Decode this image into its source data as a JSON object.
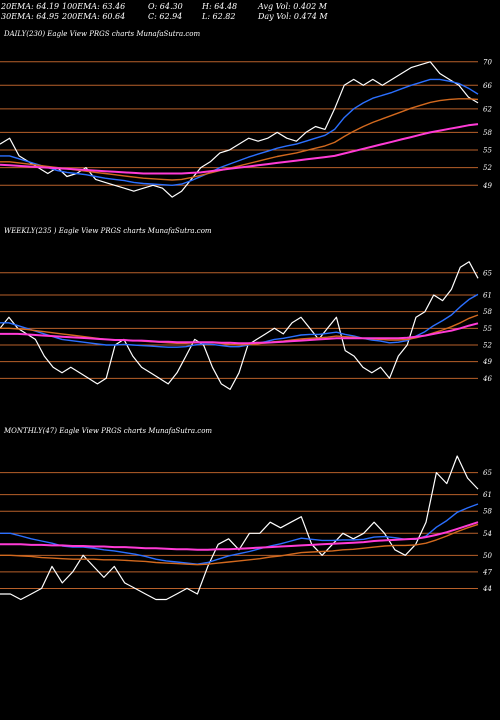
{
  "header": {
    "ema20": "20EMA: 64.19",
    "ema100": "100EMA: 63.46",
    "open": "O: 64.30",
    "high": "H: 64.48",
    "avg_vol": "Avg Vol: 0.402  M",
    "ema30": "30EMA: 64.95",
    "ema200": "200EMA: 60.64",
    "close": "C: 62.94",
    "low": "L: 62.82",
    "day_vol": "Day Vol: 0.474  M"
  },
  "colors": {
    "background": "#000000",
    "price": "#ffffff",
    "ema_short": "#2b6fff",
    "ema_long": "#ff3bd6",
    "ema_mid": "#d2691e",
    "gridline": "#b8602a"
  },
  "chart_data": [
    {
      "type": "line",
      "label": "DAILY(230) Eagle  View  PRGS charts MunafaSutra.com",
      "ylim": [
        46.5,
        72
      ],
      "yticks": [
        70,
        66,
        62,
        58,
        55,
        52,
        49
      ],
      "series": [
        {
          "role": "price",
          "color": "#ffffff",
          "values": [
            56,
            57,
            54,
            53,
            52,
            51,
            52,
            50.5,
            51,
            52,
            50,
            49.5,
            49,
            48.5,
            48,
            48.5,
            49,
            48.5,
            47,
            48,
            50,
            52,
            53,
            54.5,
            55,
            56,
            57,
            56.5,
            57,
            58,
            57,
            56.5,
            58,
            59,
            58.5,
            62,
            66,
            67,
            66,
            67,
            66,
            67,
            68,
            69,
            69.5,
            70,
            68,
            67,
            66,
            64,
            63
          ]
        },
        {
          "role": "ema_short",
          "color": "#2b6fff",
          "values": [
            54,
            54,
            53.5,
            53,
            52.5,
            52,
            51.5,
            51.2,
            51,
            50.8,
            50.5,
            50.2,
            50,
            49.8,
            49.5,
            49.3,
            49.2,
            49.1,
            49,
            49.2,
            49.8,
            50.5,
            51.2,
            52,
            52.6,
            53.2,
            53.8,
            54.3,
            54.8,
            55.3,
            55.7,
            56,
            56.5,
            57,
            57.5,
            58.5,
            60.5,
            62,
            63,
            63.8,
            64.3,
            64.8,
            65.4,
            66,
            66.5,
            67,
            67,
            66.7,
            66.3,
            65.5,
            64.5
          ]
        },
        {
          "role": "ema_mid",
          "color": "#d2691e",
          "values": [
            53,
            53,
            52.8,
            52.6,
            52.4,
            52.2,
            52,
            51.8,
            51.6,
            51.4,
            51.2,
            51,
            50.8,
            50.6,
            50.4,
            50.2,
            50.1,
            50,
            49.9,
            50,
            50.3,
            50.7,
            51.1,
            51.5,
            51.9,
            52.3,
            52.7,
            53.1,
            53.5,
            53.9,
            54.2,
            54.5,
            54.9,
            55.3,
            55.7,
            56.3,
            57.3,
            58.2,
            59,
            59.7,
            60.3,
            60.9,
            61.5,
            62.1,
            62.6,
            63.1,
            63.4,
            63.6,
            63.7,
            63.7,
            63.6
          ]
        },
        {
          "role": "ema_long",
          "color": "#ff3bd6",
          "values": [
            52.5,
            52.4,
            52.3,
            52.2,
            52.1,
            52,
            51.9,
            51.8,
            51.7,
            51.6,
            51.5,
            51.4,
            51.3,
            51.2,
            51.1,
            51,
            51,
            51,
            51,
            51,
            51.1,
            51.2,
            51.4,
            51.6,
            51.8,
            52,
            52.2,
            52.4,
            52.6,
            52.8,
            53,
            53.2,
            53.4,
            53.6,
            53.8,
            54,
            54.4,
            54.8,
            55.2,
            55.6,
            56,
            56.4,
            56.8,
            57.2,
            57.6,
            58,
            58.3,
            58.6,
            58.9,
            59.2,
            59.4
          ]
        }
      ]
    },
    {
      "type": "line",
      "label": "WEEKLY(235              ) Eagle  View  PRGS charts MunafaSutra.com",
      "ylim": [
        43,
        70
      ],
      "yticks": [
        65,
        61,
        58,
        55,
        52,
        49,
        46
      ],
      "series": [
        {
          "role": "price",
          "color": "#ffffff",
          "values": [
            55,
            57,
            55,
            54,
            53,
            50,
            48,
            47,
            48,
            47,
            46,
            45,
            46,
            52,
            53,
            50,
            48,
            47,
            46,
            45,
            47,
            50,
            53,
            52,
            48,
            45,
            44,
            47,
            52,
            53,
            54,
            55,
            54,
            56,
            57,
            55,
            53,
            55,
            57,
            51,
            50,
            48,
            47,
            48,
            46,
            50,
            52,
            57,
            58,
            61,
            60,
            62,
            66,
            67,
            64
          ]
        },
        {
          "role": "ema_short",
          "color": "#2b6fff",
          "values": [
            56,
            56,
            55.5,
            55,
            54.5,
            54,
            53.5,
            53,
            52.8,
            52.6,
            52.4,
            52.2,
            52,
            52,
            52.1,
            52,
            51.9,
            51.8,
            51.7,
            51.6,
            51.6,
            51.7,
            52,
            52.2,
            52.1,
            51.9,
            51.7,
            51.7,
            52,
            52.3,
            52.6,
            53,
            53.2,
            53.5,
            53.8,
            53.9,
            53.9,
            54.1,
            54.3,
            53.9,
            53.6,
            53.2,
            52.9,
            52.7,
            52.4,
            52.5,
            52.8,
            53.6,
            54.4,
            55.5,
            56.4,
            57.4,
            58.9,
            60.2,
            61.1
          ]
        },
        {
          "role": "ema_mid",
          "color": "#d2691e",
          "values": [
            55,
            55,
            54.9,
            54.8,
            54.6,
            54.4,
            54.2,
            54,
            53.8,
            53.6,
            53.4,
            53.2,
            53,
            52.9,
            52.9,
            52.8,
            52.7,
            52.6,
            52.5,
            52.4,
            52.3,
            52.3,
            52.4,
            52.5,
            52.4,
            52.3,
            52.1,
            52,
            52.1,
            52.2,
            52.4,
            52.6,
            52.7,
            52.9,
            53.1,
            53.2,
            53.3,
            53.4,
            53.6,
            53.5,
            53.4,
            53.2,
            53.1,
            53,
            52.9,
            52.9,
            53,
            53.3,
            53.7,
            54.2,
            54.7,
            55.3,
            56,
            56.8,
            57.4
          ]
        },
        {
          "role": "ema_long",
          "color": "#ff3bd6",
          "values": [
            54,
            54,
            54,
            53.9,
            53.8,
            53.7,
            53.6,
            53.5,
            53.4,
            53.3,
            53.2,
            53.1,
            53,
            52.9,
            52.9,
            52.8,
            52.8,
            52.7,
            52.6,
            52.6,
            52.5,
            52.5,
            52.5,
            52.5,
            52.5,
            52.4,
            52.4,
            52.3,
            52.3,
            52.4,
            52.4,
            52.5,
            52.6,
            52.7,
            52.8,
            52.9,
            53,
            53.1,
            53.2,
            53.2,
            53.2,
            53.2,
            53.2,
            53.2,
            53.2,
            53.2,
            53.3,
            53.5,
            53.7,
            54,
            54.3,
            54.6,
            55,
            55.5,
            55.9
          ]
        }
      ]
    },
    {
      "type": "line",
      "label": "MONTHLY(47) Eagle  View  PRGS charts MunafaSutra.com",
      "ylim": [
        41,
        70
      ],
      "yticks": [
        65,
        61,
        58,
        54,
        50,
        47,
        44
      ],
      "series": [
        {
          "role": "price",
          "color": "#ffffff",
          "values": [
            43,
            43,
            42,
            43,
            44,
            48,
            45,
            47,
            50,
            48,
            46,
            48,
            45,
            44,
            43,
            42,
            42,
            43,
            44,
            43,
            48,
            52,
            53,
            51,
            54,
            54,
            56,
            55,
            56,
            57,
            52,
            50,
            52,
            54,
            53,
            54,
            56,
            54,
            51,
            50,
            52,
            56,
            65,
            63,
            68,
            64,
            62
          ]
        },
        {
          "role": "ema_short",
          "color": "#2b6fff",
          "values": [
            54,
            54,
            53.5,
            53,
            52.6,
            52.2,
            51.7,
            51.5,
            51.5,
            51.3,
            51,
            50.8,
            50.5,
            50.2,
            49.8,
            49.3,
            49,
            48.8,
            48.6,
            48.4,
            48.7,
            49.3,
            49.9,
            50.3,
            50.7,
            51.2,
            51.7,
            52.1,
            52.6,
            53.1,
            52.9,
            52.7,
            52.7,
            52.8,
            52.8,
            52.9,
            53.3,
            53.4,
            53.2,
            52.9,
            52.9,
            53.5,
            55.1,
            56.3,
            57.8,
            58.6,
            59.3
          ]
        },
        {
          "role": "ema_mid",
          "color": "#d2691e",
          "values": [
            50,
            50,
            49.9,
            49.8,
            49.6,
            49.5,
            49.4,
            49.3,
            49.3,
            49.3,
            49.2,
            49.2,
            49.1,
            49,
            48.9,
            48.7,
            48.6,
            48.5,
            48.4,
            48.3,
            48.4,
            48.6,
            48.8,
            49,
            49.2,
            49.4,
            49.7,
            49.9,
            50.2,
            50.5,
            50.6,
            50.7,
            50.8,
            51,
            51.1,
            51.3,
            51.5,
            51.7,
            51.8,
            51.8,
            51.9,
            52.2,
            52.8,
            53.5,
            54.3,
            55,
            55.6
          ]
        },
        {
          "role": "ema_long",
          "color": "#ff3bd6",
          "values": [
            52,
            52,
            52,
            51.9,
            51.9,
            51.8,
            51.8,
            51.7,
            51.7,
            51.6,
            51.6,
            51.5,
            51.5,
            51.4,
            51.3,
            51.3,
            51.2,
            51.1,
            51.1,
            51,
            51,
            51.1,
            51.1,
            51.2,
            51.3,
            51.4,
            51.5,
            51.6,
            51.7,
            51.8,
            51.9,
            52,
            52.1,
            52.2,
            52.3,
            52.4,
            52.6,
            52.7,
            52.8,
            52.9,
            53,
            53.3,
            53.7,
            54.2,
            54.8,
            55.4,
            56
          ]
        }
      ]
    }
  ]
}
